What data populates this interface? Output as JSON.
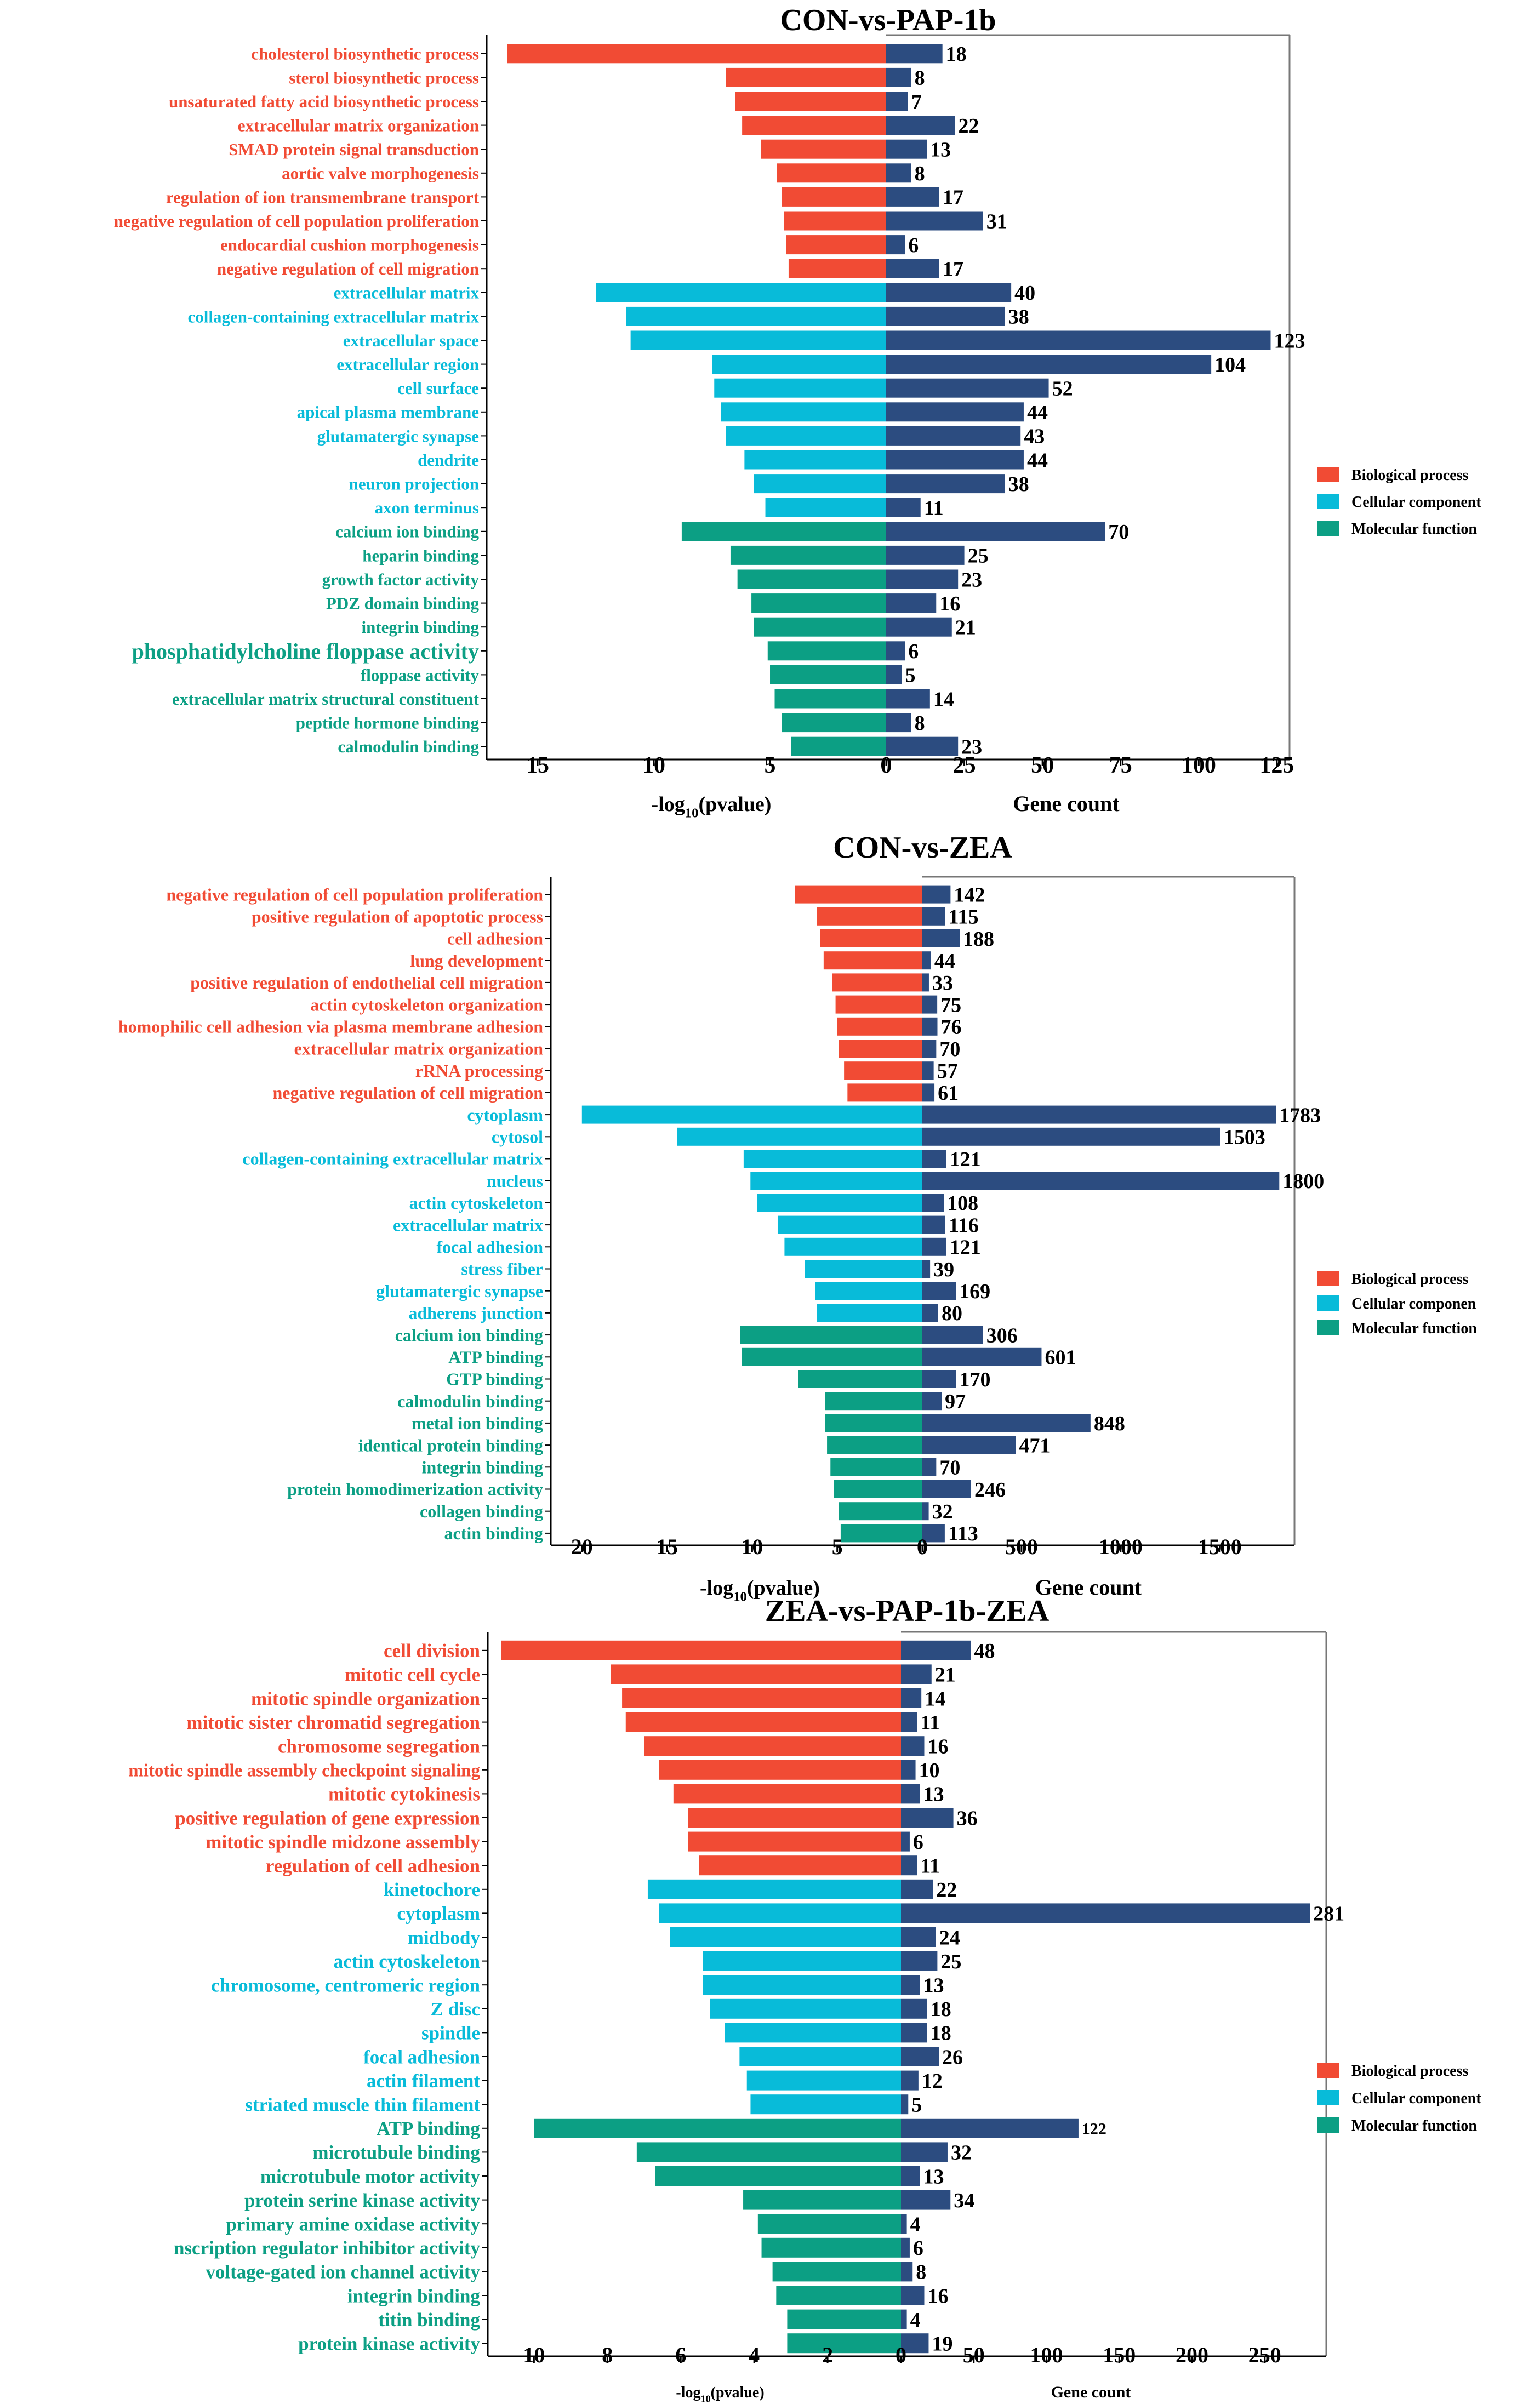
{
  "colors": {
    "Biological process": "#F14B34",
    "Cellular component": "#08BBD9",
    "Molecular function": "#0C9F84",
    "count_bar": "#2C4C80",
    "axis": "#000000",
    "frame": "#777777"
  },
  "chart_data": [
    {
      "type": "bar",
      "title": "CON-vs-PAP-1b",
      "xlabel_left": "-log10(pvalue)",
      "xlabel_right": "Gene count",
      "left_ticks": [
        15,
        10,
        5,
        0
      ],
      "right_ticks": [
        0,
        25,
        50,
        75,
        100,
        125
      ],
      "left_range": [
        0,
        17.1
      ],
      "right_range": [
        0,
        128
      ],
      "legend": [
        "Biological process",
        "Cellular component",
        "Molecular function"
      ],
      "terms": [
        {
          "term": "cholesterol biosynthetic process",
          "category": "Biological process",
          "neg_log10_p": 16.3,
          "count": 18
        },
        {
          "term": "sterol biosynthetic process",
          "category": "Biological process",
          "neg_log10_p": 6.9,
          "count": 8
        },
        {
          "term": "unsaturated fatty acid biosynthetic process",
          "category": "Biological process",
          "neg_log10_p": 6.5,
          "count": 7
        },
        {
          "term": "extracellular matrix organization",
          "category": "Biological process",
          "neg_log10_p": 6.2,
          "count": 22
        },
        {
          "term": "SMAD protein signal transduction",
          "category": "Biological process",
          "neg_log10_p": 5.4,
          "count": 13
        },
        {
          "term": "aortic valve morphogenesis",
          "category": "Biological process",
          "neg_log10_p": 4.7,
          "count": 8
        },
        {
          "term": "regulation of ion transmembrane transport",
          "category": "Biological process",
          "neg_log10_p": 4.5,
          "count": 17
        },
        {
          "term": "negative regulation of cell population proliferation",
          "category": "Biological process",
          "neg_log10_p": 4.4,
          "count": 31
        },
        {
          "term": "endocardial cushion morphogenesis",
          "category": "Biological process",
          "neg_log10_p": 4.3,
          "count": 6
        },
        {
          "term": "negative regulation of cell migration",
          "category": "Biological process",
          "neg_log10_p": 4.2,
          "count": 17
        },
        {
          "term": "extracellular matrix",
          "category": "Cellular component",
          "neg_log10_p": 12.5,
          "count": 40
        },
        {
          "term": "collagen-containing extracellular matrix",
          "category": "Cellular component",
          "neg_log10_p": 11.2,
          "count": 38
        },
        {
          "term": "extracellular space",
          "category": "Cellular component",
          "neg_log10_p": 11.0,
          "count": 123
        },
        {
          "term": "extracellular region",
          "category": "Cellular component",
          "neg_log10_p": 7.5,
          "count": 104
        },
        {
          "term": "cell surface",
          "category": "Cellular component",
          "neg_log10_p": 7.4,
          "count": 52
        },
        {
          "term": "apical plasma membrane",
          "category": "Cellular component",
          "neg_log10_p": 7.1,
          "count": 44
        },
        {
          "term": "glutamatergic synapse",
          "category": "Cellular component",
          "neg_log10_p": 6.9,
          "count": 43
        },
        {
          "term": "dendrite",
          "category": "Cellular component",
          "neg_log10_p": 6.1,
          "count": 44
        },
        {
          "term": "neuron projection",
          "category": "Cellular component",
          "neg_log10_p": 5.7,
          "count": 38
        },
        {
          "term": "axon terminus",
          "category": "Cellular component",
          "neg_log10_p": 5.2,
          "count": 11
        },
        {
          "term": "calcium ion binding",
          "category": "Molecular function",
          "neg_log10_p": 8.8,
          "count": 70
        },
        {
          "term": "heparin binding",
          "category": "Molecular function",
          "neg_log10_p": 6.7,
          "count": 25
        },
        {
          "term": "growth factor activity",
          "category": "Molecular function",
          "neg_log10_p": 6.4,
          "count": 23
        },
        {
          "term": "PDZ domain binding",
          "category": "Molecular function",
          "neg_log10_p": 5.8,
          "count": 16
        },
        {
          "term": "integrin binding",
          "category": "Molecular function",
          "neg_log10_p": 5.7,
          "count": 21
        },
        {
          "term": "phosphatidylcholine floppase activity",
          "category": "Molecular function",
          "neg_log10_p": 5.1,
          "count": 6
        },
        {
          "term": "floppase activity",
          "category": "Molecular function",
          "neg_log10_p": 5.0,
          "count": 5
        },
        {
          "term": "extracellular matrix structural constituent",
          "category": "Molecular function",
          "neg_log10_p": 4.8,
          "count": 14
        },
        {
          "term": "peptide hormone binding",
          "category": "Molecular function",
          "neg_log10_p": 4.5,
          "count": 8
        },
        {
          "term": "calmodulin binding",
          "category": "Molecular function",
          "neg_log10_p": 4.1,
          "count": 23
        }
      ]
    },
    {
      "type": "bar",
      "title": "CON-vs-ZEA",
      "xlabel_left": "-log10(pvalue)",
      "xlabel_right": "Gene count",
      "left_ticks": [
        20,
        15,
        10,
        5,
        0
      ],
      "right_ticks": [
        0,
        500,
        1000,
        1500
      ],
      "left_range": [
        0,
        21.7
      ],
      "right_range": [
        0,
        1860
      ],
      "legend": [
        "Biological process",
        "Cellular componen",
        "Molecular function"
      ],
      "terms": [
        {
          "term": "negative regulation of cell population proliferation",
          "category": "Biological process",
          "neg_log10_p": 7.5,
          "count": 142
        },
        {
          "term": "positive regulation of apoptotic process",
          "category": "Biological process",
          "neg_log10_p": 6.2,
          "count": 115
        },
        {
          "term": "cell adhesion",
          "category": "Biological process",
          "neg_log10_p": 6.0,
          "count": 188
        },
        {
          "term": "lung development",
          "category": "Biological process",
          "neg_log10_p": 5.8,
          "count": 44
        },
        {
          "term": "positive regulation of endothelial cell migration",
          "category": "Biological process",
          "neg_log10_p": 5.3,
          "count": 33
        },
        {
          "term": "actin cytoskeleton organization",
          "category": "Biological process",
          "neg_log10_p": 5.1,
          "count": 75
        },
        {
          "term": "homophilic cell adhesion via plasma membrane adhesion",
          "category": "Biological process",
          "neg_log10_p": 5.0,
          "count": 76
        },
        {
          "term": "extracellular matrix organization",
          "category": "Biological process",
          "neg_log10_p": 4.9,
          "count": 70
        },
        {
          "term": "rRNA processing",
          "category": "Biological process",
          "neg_log10_p": 4.6,
          "count": 57
        },
        {
          "term": "negative regulation of cell migration",
          "category": "Biological process",
          "neg_log10_p": 4.4,
          "count": 61
        },
        {
          "term": "cytoplasm",
          "category": "Cellular component",
          "neg_log10_p": 20.0,
          "count": 1783
        },
        {
          "term": "cytosol",
          "category": "Cellular component",
          "neg_log10_p": 14.4,
          "count": 1503
        },
        {
          "term": "collagen-containing extracellular matrix",
          "category": "Cellular component",
          "neg_log10_p": 10.5,
          "count": 121
        },
        {
          "term": "nucleus",
          "category": "Cellular component",
          "neg_log10_p": 10.1,
          "count": 1800
        },
        {
          "term": "actin cytoskeleton",
          "category": "Cellular component",
          "neg_log10_p": 9.7,
          "count": 108
        },
        {
          "term": "extracellular matrix",
          "category": "Cellular component",
          "neg_log10_p": 8.5,
          "count": 116
        },
        {
          "term": "focal adhesion",
          "category": "Cellular component",
          "neg_log10_p": 8.1,
          "count": 121
        },
        {
          "term": "stress fiber",
          "category": "Cellular component",
          "neg_log10_p": 6.9,
          "count": 39
        },
        {
          "term": "glutamatergic synapse",
          "category": "Cellular component",
          "neg_log10_p": 6.3,
          "count": 169
        },
        {
          "term": "adherens junction",
          "category": "Cellular component",
          "neg_log10_p": 6.2,
          "count": 80
        },
        {
          "term": "calcium ion binding",
          "category": "Molecular function",
          "neg_log10_p": 10.7,
          "count": 306
        },
        {
          "term": "ATP binding",
          "category": "Molecular function",
          "neg_log10_p": 10.6,
          "count": 601
        },
        {
          "term": "GTP binding",
          "category": "Molecular function",
          "neg_log10_p": 7.3,
          "count": 170
        },
        {
          "term": "calmodulin binding",
          "category": "Molecular function",
          "neg_log10_p": 5.7,
          "count": 97
        },
        {
          "term": "metal ion binding",
          "category": "Molecular function",
          "neg_log10_p": 5.7,
          "count": 848
        },
        {
          "term": "identical protein binding",
          "category": "Molecular function",
          "neg_log10_p": 5.6,
          "count": 471
        },
        {
          "term": "integrin binding",
          "category": "Molecular function",
          "neg_log10_p": 5.4,
          "count": 70
        },
        {
          "term": "protein homodimerization activity",
          "category": "Molecular function",
          "neg_log10_p": 5.2,
          "count": 246
        },
        {
          "term": "collagen binding",
          "category": "Molecular function",
          "neg_log10_p": 4.9,
          "count": 32
        },
        {
          "term": "actin binding",
          "category": "Molecular function",
          "neg_log10_p": 4.8,
          "count": 113
        }
      ]
    },
    {
      "type": "bar",
      "title": "ZEA-vs-PAP-1b-ZEA",
      "xlabel_left": "-log10(pvalue)",
      "xlabel_right": "Gene count",
      "left_ticks": [
        10,
        8,
        6,
        4,
        2,
        0
      ],
      "right_ticks": [
        0,
        50,
        100,
        150,
        200,
        250
      ],
      "left_range": [
        0,
        11.2
      ],
      "right_range": [
        0,
        290
      ],
      "legend": [
        "Biological process",
        "Cellular component",
        "Molecular function"
      ],
      "terms": [
        {
          "term": "cell division",
          "category": "Biological process",
          "neg_log10_p": 10.9,
          "count": 48
        },
        {
          "term": "mitotic cell cycle",
          "category": "Biological process",
          "neg_log10_p": 7.9,
          "count": 21
        },
        {
          "term": "mitotic spindle organization",
          "category": "Biological process",
          "neg_log10_p": 7.6,
          "count": 14
        },
        {
          "term": "mitotic sister chromatid segregation",
          "category": "Biological process",
          "neg_log10_p": 7.5,
          "count": 11
        },
        {
          "term": "chromosome segregation",
          "category": "Biological process",
          "neg_log10_p": 7.0,
          "count": 16
        },
        {
          "term": "mitotic spindle assembly checkpoint signaling",
          "category": "Biological process",
          "neg_log10_p": 6.6,
          "count": 10
        },
        {
          "term": "mitotic cytokinesis",
          "category": "Biological process",
          "neg_log10_p": 6.2,
          "count": 13
        },
        {
          "term": "positive regulation of gene expression",
          "category": "Biological process",
          "neg_log10_p": 5.8,
          "count": 36
        },
        {
          "term": "mitotic spindle midzone assembly",
          "category": "Biological process",
          "neg_log10_p": 5.8,
          "count": 6
        },
        {
          "term": "regulation of cell adhesion",
          "category": "Biological process",
          "neg_log10_p": 5.5,
          "count": 11
        },
        {
          "term": "kinetochore",
          "category": "Cellular component",
          "neg_log10_p": 6.9,
          "count": 22
        },
        {
          "term": "cytoplasm",
          "category": "Cellular component",
          "neg_log10_p": 6.6,
          "count": 281
        },
        {
          "term": "midbody",
          "category": "Cellular component",
          "neg_log10_p": 6.3,
          "count": 24
        },
        {
          "term": "actin cytoskeleton",
          "category": "Cellular component",
          "neg_log10_p": 5.4,
          "count": 25
        },
        {
          "term": "chromosome, centromeric region",
          "category": "Cellular component",
          "neg_log10_p": 5.4,
          "count": 13
        },
        {
          "term": "Z disc",
          "category": "Cellular component",
          "neg_log10_p": 5.2,
          "count": 18
        },
        {
          "term": "spindle",
          "category": "Cellular component",
          "neg_log10_p": 4.8,
          "count": 18
        },
        {
          "term": "focal adhesion",
          "category": "Cellular component",
          "neg_log10_p": 4.4,
          "count": 26
        },
        {
          "term": "actin filament",
          "category": "Cellular component",
          "neg_log10_p": 4.2,
          "count": 12
        },
        {
          "term": "striated muscle thin filament",
          "category": "Cellular component",
          "neg_log10_p": 4.1,
          "count": 5
        },
        {
          "term": "ATP binding",
          "category": "Molecular function",
          "neg_log10_p": 10.0,
          "count": 122
        },
        {
          "term": "microtubule binding",
          "category": "Molecular function",
          "neg_log10_p": 7.2,
          "count": 32
        },
        {
          "term": "microtubule motor activity",
          "category": "Molecular function",
          "neg_log10_p": 6.7,
          "count": 13
        },
        {
          "term": "protein serine kinase activity",
          "category": "Molecular function",
          "neg_log10_p": 4.3,
          "count": 34
        },
        {
          "term": "primary amine oxidase activity",
          "category": "Molecular function",
          "neg_log10_p": 3.9,
          "count": 4
        },
        {
          "term": "nscription regulator inhibitor activity",
          "category": "Molecular function",
          "neg_log10_p": 3.8,
          "count": 6
        },
        {
          "term": "voltage-gated ion channel activity",
          "category": "Molecular function",
          "neg_log10_p": 3.5,
          "count": 8
        },
        {
          "term": "integrin binding",
          "category": "Molecular function",
          "neg_log10_p": 3.4,
          "count": 16
        },
        {
          "term": "titin binding",
          "category": "Molecular function",
          "neg_log10_p": 3.1,
          "count": 4
        },
        {
          "term": "protein kinase activity",
          "category": "Molecular function",
          "neg_log10_p": 3.1,
          "count": 19
        }
      ]
    }
  ]
}
